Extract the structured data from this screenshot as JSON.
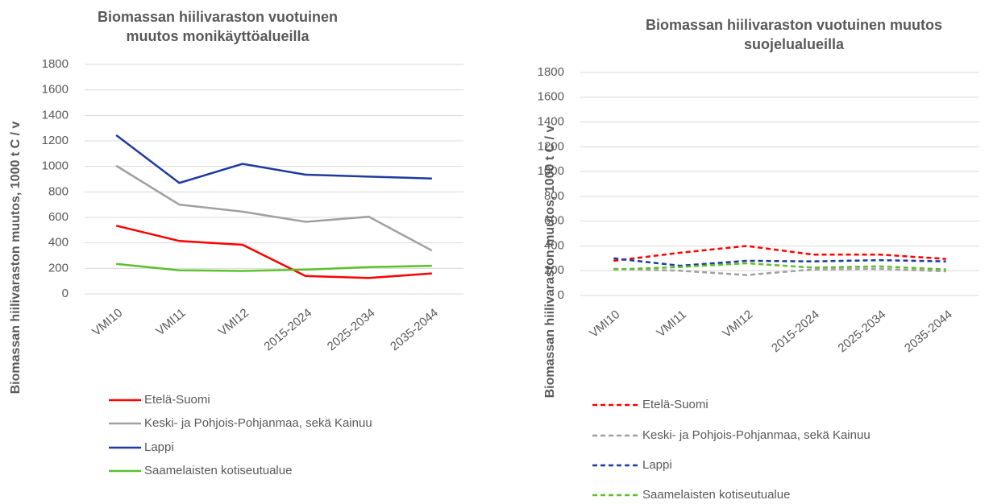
{
  "chart_data": [
    {
      "type": "line",
      "title": [
        "Biomassan hiilivaraston vuotuinen",
        "muutos monikäyttöalueilla"
      ],
      "y_label": "Biomassan hiilivaraston muutos, 1000 t C / v",
      "categories": [
        "VMI10",
        "VMI11",
        "VMI12",
        "2015-2024",
        "2025-2034",
        "2035-2044"
      ],
      "line_style": "solid",
      "series": [
        {
          "name": "Etelä-Suomi",
          "color": "#ff0000",
          "values": [
            535,
            415,
            385,
            140,
            125,
            160
          ]
        },
        {
          "name": "Keski- ja Pohjois-Pohjanmaa, sekä Kainuu",
          "color": "#a0a0a0",
          "values": [
            1005,
            700,
            645,
            565,
            605,
            340
          ]
        },
        {
          "name": "Lappi",
          "color": "#1f3a9f",
          "values": [
            1245,
            870,
            1020,
            935,
            920,
            905
          ]
        },
        {
          "name": "Saamelaisten kotiseutualue",
          "color": "#5cc02a",
          "values": [
            235,
            185,
            180,
            190,
            210,
            220
          ]
        }
      ],
      "ylim": [
        0,
        1800
      ],
      "yticks": [
        0,
        200,
        400,
        600,
        800,
        1000,
        1200,
        1400,
        1600,
        1800
      ],
      "grid": true,
      "legend": "bottom"
    },
    {
      "type": "line",
      "title": [
        "Biomassan hiilivaraston vuotuinen muutos",
        "suojelualueilla"
      ],
      "y_label": "Biomassan hiilivaraston muutos, 1000 t C / v",
      "categories": [
        "VMI10",
        "VMI11",
        "VMI12",
        "2015-2024",
        "2025-2034",
        "2035-2044"
      ],
      "line_style": "dashed",
      "series": [
        {
          "name": "Etelä-Suomi",
          "color": "#ff0000",
          "values": [
            280,
            345,
            400,
            330,
            330,
            295
          ]
        },
        {
          "name": "Keski- ja Pohjois-Pohjanmaa, sekä Kainuu",
          "color": "#a0a0a0",
          "values": [
            215,
            200,
            165,
            210,
            215,
            195
          ]
        },
        {
          "name": "Lappi",
          "color": "#1f3a9f",
          "values": [
            300,
            240,
            280,
            275,
            285,
            275
          ]
        },
        {
          "name": "Saamelaisten kotiseutualue",
          "color": "#5cc02a",
          "values": [
            210,
            230,
            260,
            225,
            235,
            210
          ]
        }
      ],
      "ylim": [
        0,
        1800
      ],
      "yticks": [
        0,
        200,
        400,
        600,
        800,
        1000,
        1200,
        1400,
        1600,
        1800
      ],
      "grid": true,
      "legend": "bottom"
    }
  ]
}
